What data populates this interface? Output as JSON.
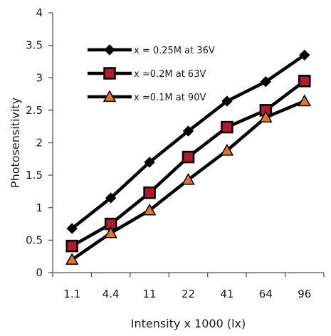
{
  "chart_data": {
    "type": "line",
    "title": "",
    "xlabel": "Intensity x  1000 (lx)",
    "ylabel": "Photosensitivity",
    "categories": [
      "1.1",
      "4.4",
      "11",
      "22",
      "41",
      "64",
      "96"
    ],
    "ylim": [
      0,
      4
    ],
    "yticks": [
      "0",
      "0.5",
      "1",
      "1.5",
      "2",
      "2.5",
      "3",
      "3.5",
      "4"
    ],
    "grid": false,
    "legend_position": "top-left",
    "series": [
      {
        "name": "x = 0.25M at 36V",
        "marker": "diamond",
        "line_color": "#000000",
        "marker_fill": "#000000",
        "values": [
          0.68,
          1.15,
          1.7,
          2.18,
          2.64,
          2.94,
          3.35
        ]
      },
      {
        "name": "x =0.2M at 63V",
        "marker": "square",
        "line_color": "#000000",
        "marker_fill": "#b01c2e",
        "values": [
          0.41,
          0.75,
          1.23,
          1.78,
          2.24,
          2.5,
          2.95
        ]
      },
      {
        "name": "x =0.1M at 90V",
        "marker": "triangle",
        "line_color": "#000000",
        "marker_fill": "#e8742c",
        "values": [
          0.2,
          0.61,
          0.96,
          1.43,
          1.88,
          2.39,
          2.64
        ]
      }
    ]
  }
}
